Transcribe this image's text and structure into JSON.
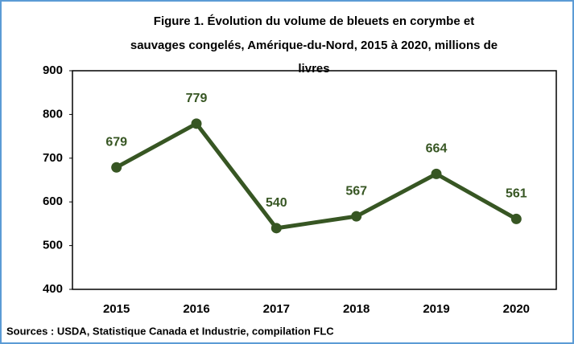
{
  "chart_data": {
    "type": "line",
    "title": [
      "Figure 1. Évolution du volume de bleuets en corymbe et",
      "sauvages congelés, Amérique-du-Nord, 2015 à 2020, millions de",
      "livres"
    ],
    "categories": [
      "2015",
      "2016",
      "2017",
      "2018",
      "2019",
      "2020"
    ],
    "values": [
      679,
      779,
      540,
      567,
      664,
      561
    ],
    "color": "#375623",
    "ylim": [
      400,
      900
    ],
    "yticks": [
      400,
      500,
      600,
      700,
      800,
      900
    ],
    "grid": false,
    "source": "Sources : USDA, Statistique Canada et Industrie, compilation FLC"
  }
}
